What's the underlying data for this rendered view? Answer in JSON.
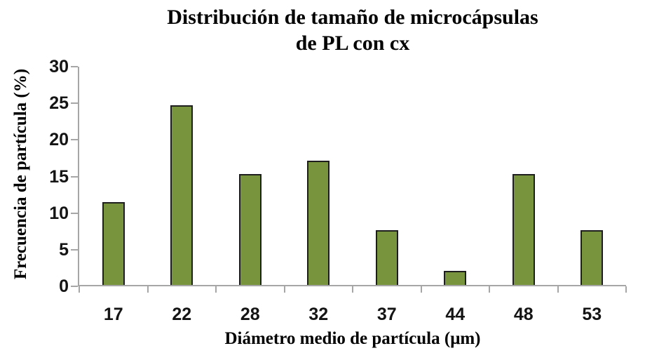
{
  "chart": {
    "title_line1": "Distribución de tamaño de microcápsulas",
    "title_line2": "de PL con cx",
    "ylabel": "Frecuencia de partícula (%)",
    "xlabel": "Diámetro medio de partícula (μm)"
  },
  "chart_data": {
    "type": "bar",
    "title": "Distribución de tamaño de microcápsulas de PL con cx",
    "categories": [
      "17",
      "22",
      "28",
      "32",
      "37",
      "44",
      "48",
      "53"
    ],
    "values": [
      11.3,
      24.5,
      15.1,
      17.0,
      7.5,
      1.9,
      15.1,
      7.5
    ],
    "xlabel": "Diámetro medio de partícula (μm)",
    "ylabel": "Frecuencia de partícula (%)",
    "ylim": [
      0,
      30
    ],
    "yticks": [
      0,
      5,
      10,
      15,
      20,
      25,
      30
    ],
    "grid": false,
    "legend": false,
    "bar_color": "#78953D",
    "bar_border_color": "#1E1E1E",
    "axis_color": "#A6A6A6",
    "text_color": "#141414"
  }
}
